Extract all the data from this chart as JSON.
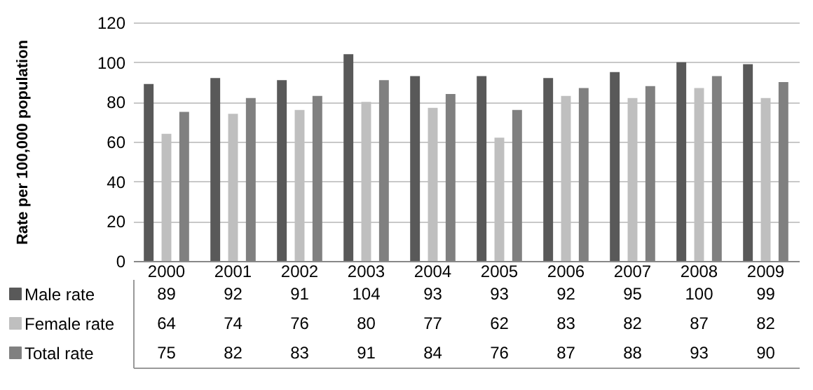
{
  "chart_data": {
    "type": "bar",
    "ylabel": "Rate per 100,000 population",
    "categories": [
      "2000",
      "2001",
      "2002",
      "2003",
      "2004",
      "2005",
      "2006",
      "2007",
      "2008",
      "2009"
    ],
    "series": [
      {
        "name": "Male rate",
        "color": "#595959",
        "values": [
          89,
          92,
          91,
          104,
          93,
          93,
          92,
          95,
          100,
          99
        ]
      },
      {
        "name": "Female rate",
        "color": "#bfbfbf",
        "values": [
          64,
          74,
          76,
          80,
          77,
          62,
          83,
          82,
          87,
          82
        ]
      },
      {
        "name": "Total rate",
        "color": "#808080",
        "values": [
          75,
          82,
          83,
          91,
          84,
          76,
          87,
          88,
          93,
          90
        ]
      }
    ],
    "ylim": [
      0,
      120
    ],
    "yticks": [
      0,
      20,
      40,
      60,
      80,
      100,
      120
    ],
    "grid": "y",
    "legend": "bottom",
    "data_labels": true
  }
}
